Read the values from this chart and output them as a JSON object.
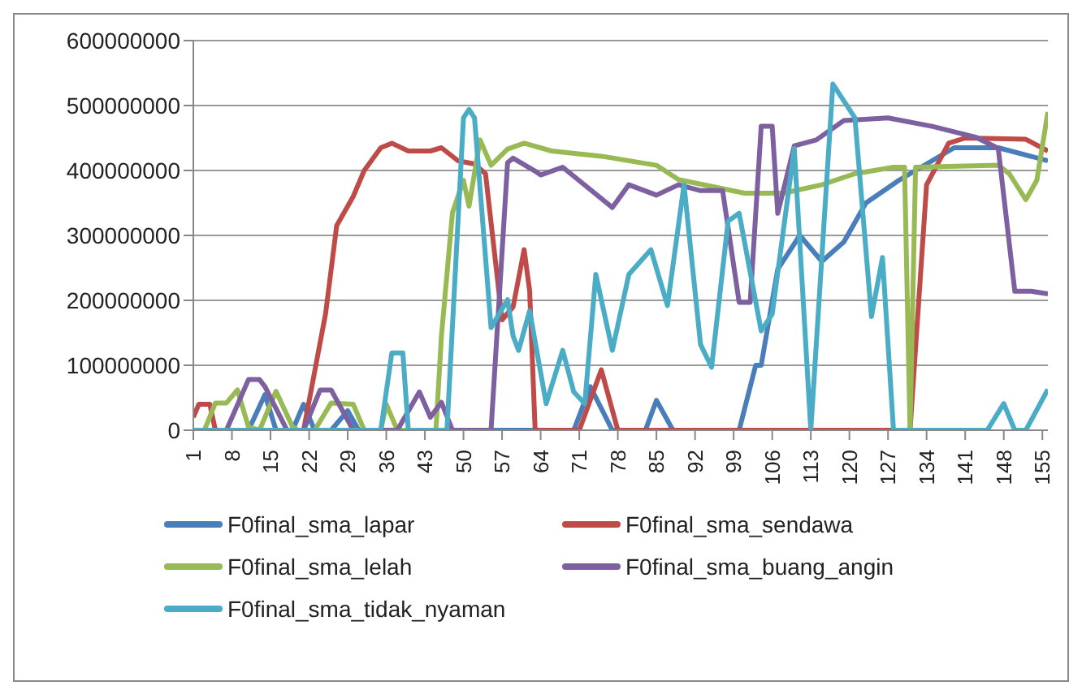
{
  "chart_data": {
    "type": "line",
    "xlim": [
      1,
      156
    ],
    "xticks": [
      1,
      8,
      15,
      22,
      29,
      36,
      43,
      50,
      57,
      64,
      71,
      78,
      85,
      92,
      99,
      106,
      113,
      120,
      127,
      134,
      141,
      148,
      155
    ],
    "ylim": [
      0,
      600000000
    ],
    "yticks": [
      0,
      100000000,
      200000000,
      300000000,
      400000000,
      500000000,
      600000000
    ],
    "grid": "y",
    "legend": "bottom",
    "marker": "none",
    "line_style": "solid",
    "series": [
      {
        "name": "F0final_sma_lapar",
        "color": "#4a7ebb",
        "x": [
          1,
          11,
          14,
          16,
          19,
          21,
          23,
          26,
          29,
          31,
          70,
          73,
          77,
          83,
          85,
          88,
          100,
          103,
          104,
          107,
          111,
          115,
          119,
          123,
          129,
          135,
          139,
          147,
          156
        ],
        "values": [
          0,
          0,
          55000000,
          0,
          0,
          40000000,
          0,
          0,
          30000000,
          0,
          0,
          67000000,
          0,
          0,
          46000000,
          0,
          0,
          100000000,
          100000000,
          248000000,
          300000000,
          260000000,
          290000000,
          350000000,
          385000000,
          415000000,
          435000000,
          435000000,
          415000000
        ]
      },
      {
        "name": "F0final_sma_sendawa",
        "color": "#be4b48",
        "x": [
          1,
          2,
          4,
          5,
          21,
          25,
          27,
          30,
          32,
          35,
          37,
          40,
          44,
          46,
          49,
          52,
          54,
          57,
          59,
          61,
          62,
          63,
          71,
          75,
          78,
          131,
          134,
          138,
          141,
          152,
          156
        ],
        "values": [
          20000000,
          40000000,
          40000000,
          0,
          0,
          180000000,
          315000000,
          360000000,
          400000000,
          435000000,
          442000000,
          430000000,
          430000000,
          435000000,
          415000000,
          410000000,
          395000000,
          170000000,
          190000000,
          278000000,
          215000000,
          0,
          0,
          93000000,
          0,
          0,
          378000000,
          442000000,
          450000000,
          448000000,
          430000000
        ]
      },
      {
        "name": "F0final_sma_lelah",
        "color": "#98b954",
        "x": [
          1,
          3,
          5,
          7,
          9,
          11,
          13,
          16,
          19,
          20,
          23,
          26,
          30,
          32,
          35,
          36,
          38,
          45,
          46,
          48,
          50,
          51,
          53,
          55,
          58,
          61,
          66,
          75,
          85,
          89,
          101,
          108,
          115,
          121,
          128,
          130,
          131,
          132,
          147,
          149,
          152,
          154,
          156
        ],
        "values": [
          0,
          0,
          42000000,
          42000000,
          62000000,
          5000000,
          0,
          60000000,
          5000000,
          0,
          0,
          42000000,
          40000000,
          0,
          0,
          40000000,
          0,
          0,
          145000000,
          335000000,
          385000000,
          345000000,
          447000000,
          408000000,
          433000000,
          442000000,
          430000000,
          422000000,
          408000000,
          386000000,
          365000000,
          365000000,
          378000000,
          395000000,
          405000000,
          405000000,
          0,
          405000000,
          408000000,
          395000000,
          355000000,
          385000000,
          490000000
        ]
      },
      {
        "name": "F0final_sma_buang_angin",
        "color": "#7d60a0",
        "x": [
          1,
          7,
          11,
          13,
          14,
          18,
          21,
          24,
          26,
          30,
          38,
          42,
          44,
          46,
          48,
          55,
          58,
          59,
          63,
          64,
          68,
          77,
          80,
          85,
          89,
          93,
          97,
          100,
          102,
          104,
          106,
          107,
          110,
          114,
          119,
          127,
          135,
          143,
          147,
          150,
          153,
          156
        ],
        "values": [
          0,
          0,
          78000000,
          78000000,
          67000000,
          0,
          0,
          62000000,
          62000000,
          0,
          0,
          59000000,
          20000000,
          43000000,
          0,
          0,
          412000000,
          419000000,
          399000000,
          393000000,
          405000000,
          343000000,
          378000000,
          362000000,
          378000000,
          369000000,
          369000000,
          197000000,
          197000000,
          468000000,
          468000000,
          334000000,
          438000000,
          447000000,
          477000000,
          481000000,
          468000000,
          451000000,
          434000000,
          214000000,
          214000000,
          210000000
        ]
      },
      {
        "name": "F0final_sma_tidak_nyaman",
        "color": "#4bacc6",
        "x": [
          1,
          35,
          37,
          39,
          40,
          47,
          50,
          51,
          52,
          55,
          58,
          59,
          60,
          62,
          65,
          68,
          70,
          72,
          74,
          77,
          80,
          84,
          87,
          90,
          93,
          95,
          98,
          100,
          104,
          106,
          110,
          113,
          117,
          121,
          124,
          126,
          128,
          145,
          148,
          150,
          152,
          156
        ],
        "values": [
          0,
          0,
          119000000,
          119000000,
          0,
          0,
          481000000,
          494000000,
          481000000,
          158000000,
          201000000,
          145000000,
          123000000,
          184000000,
          41000000,
          123000000,
          59000000,
          41000000,
          240000000,
          123000000,
          240000000,
          278000000,
          192000000,
          378000000,
          132000000,
          97000000,
          322000000,
          334000000,
          153000000,
          179000000,
          434000000,
          0,
          533000000,
          481000000,
          175000000,
          266000000,
          0,
          0,
          41000000,
          0,
          0,
          63000000
        ]
      }
    ]
  }
}
